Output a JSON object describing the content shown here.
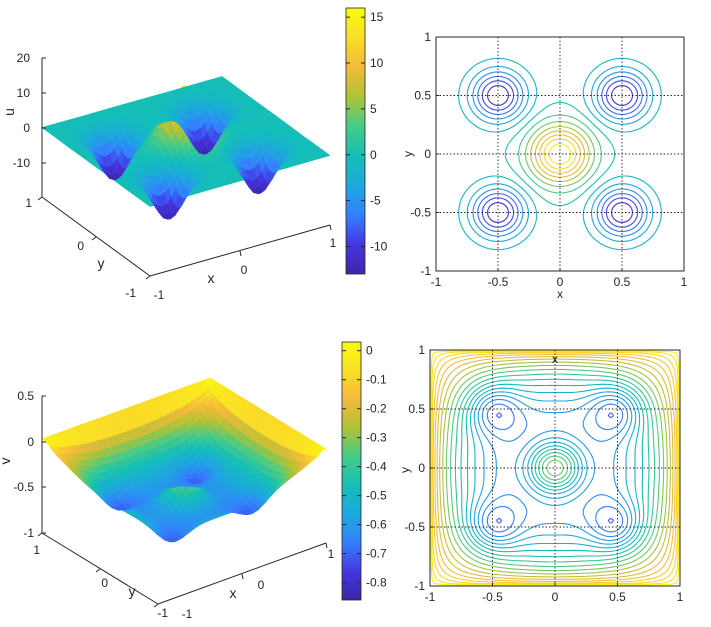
{
  "colormap": [
    "#3e26a8",
    "#4435e3",
    "#347ffd",
    "#1ea8df",
    "#14beb8",
    "#48cb86",
    "#b3c235",
    "#f5ba3c",
    "#fadf25",
    "#f9fb0e"
  ],
  "chart_data": [
    {
      "type": "surface",
      "panel": "top-left",
      "xlabel": "x",
      "ylabel": "y",
      "zlabel": "u",
      "xlim": [
        -1,
        1
      ],
      "ylim": [
        -1,
        1
      ],
      "zlim": [
        -20,
        20
      ],
      "x_ticks": [
        "0",
        "1"
      ],
      "y_ticks": [
        "-1",
        "0",
        "1"
      ],
      "y_tick_extra": "-1",
      "z_ticks": [
        "20",
        "10",
        "0",
        "-10"
      ],
      "center_peak": 16,
      "well_depth": -13,
      "well_locations": [
        [
          -0.5,
          -0.5
        ],
        [
          -0.5,
          0.5
        ],
        [
          0.5,
          -0.5
        ],
        [
          0.5,
          0.5
        ]
      ],
      "colorbar": {
        "min": -13,
        "max": 16,
        "ticks": [
          "15",
          "10",
          "5",
          "0",
          "-5",
          "-10"
        ],
        "tick_values": [
          15,
          10,
          5,
          0,
          -5,
          -10
        ]
      }
    },
    {
      "type": "contour",
      "panel": "top-right",
      "xlabel": "x",
      "ylabel": "y",
      "xlim": [
        -1,
        1
      ],
      "ylim": [
        -1,
        1
      ],
      "x_ticks": [
        "-1",
        "-0.5",
        "0",
        "0.5",
        "1"
      ],
      "y_ticks": [
        "1",
        "0.5",
        "0",
        "-0.5",
        "-1"
      ],
      "grid": true
    },
    {
      "type": "surface",
      "panel": "bottom-left",
      "xlabel": "x",
      "ylabel": "y",
      "zlabel": "v",
      "xlim": [
        -1,
        1
      ],
      "ylim": [
        -1,
        1
      ],
      "zlim": [
        -1,
        0.5
      ],
      "x_ticks": [
        "0",
        "1"
      ],
      "y_ticks": [
        "-1",
        "0",
        "1"
      ],
      "y_tick_extra": "-1",
      "z_ticks": [
        "0.5",
        "0",
        "-0.5",
        "-1"
      ],
      "boundary_value": 0.03,
      "center_peak": 0,
      "well_depth": -0.85,
      "colorbar": {
        "min": -0.86,
        "max": 0.03,
        "ticks": [
          "0",
          "-0.1",
          "-0.2",
          "-0.3",
          "-0.4",
          "-0.5",
          "-0.6",
          "-0.7",
          "-0.8"
        ],
        "tick_values": [
          0,
          -0.1,
          -0.2,
          -0.3,
          -0.4,
          -0.5,
          -0.6,
          -0.7,
          -0.8
        ]
      }
    },
    {
      "type": "contour",
      "panel": "bottom-right",
      "xlabel": "x",
      "ylabel": "y",
      "xlim": [
        -1,
        1
      ],
      "ylim": [
        -1,
        1
      ],
      "x_ticks": [
        "-1",
        "-0.5",
        "0",
        "0.5",
        "1"
      ],
      "y_ticks": [
        "1",
        "0.5",
        "0",
        "-0.5",
        "-1"
      ],
      "grid": true
    }
  ]
}
